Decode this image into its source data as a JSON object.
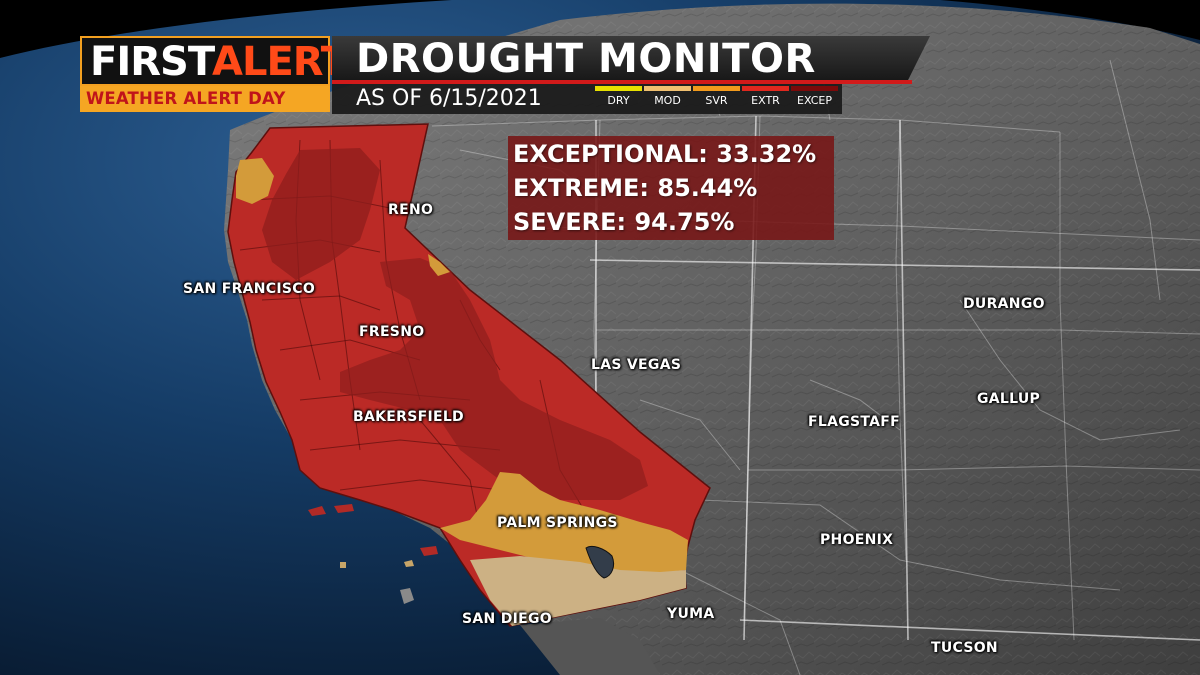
{
  "header": {
    "logo_first": "FIRST",
    "logo_alert": "ALERT",
    "logo_subtitle": "WEATHER ALERT DAY",
    "title": "DROUGHT MONITOR",
    "date": "AS OF 6/15/2021"
  },
  "legend": [
    {
      "label": "DRY",
      "color": "#e7e000"
    },
    {
      "label": "MOD",
      "color": "#f0c070"
    },
    {
      "label": "SVR",
      "color": "#f29a1c"
    },
    {
      "label": "EXTR",
      "color": "#e0281e"
    },
    {
      "label": "EXCEP",
      "color": "#7a0a0a"
    }
  ],
  "stats": {
    "exceptional": "EXCEPTIONAL: 33.32%",
    "extreme": "EXTREME: 85.44%",
    "severe": "SEVERE: 94.75%"
  },
  "cities": {
    "reno": "RENO",
    "san_francisco": "SAN FRANCISCO",
    "fresno": "FRESNO",
    "las_vegas": "LAS VEGAS",
    "bakersfield": "BAKERSFIELD",
    "palm_springs": "PALM SPRINGS",
    "san_diego": "SAN DIEGO",
    "yuma": "YUMA",
    "durango": "DURANGO",
    "gallup": "GALLUP",
    "flagstaff": "FLAGSTAFF",
    "phoenix": "PHOENIX",
    "tucson": "TUCSON"
  }
}
